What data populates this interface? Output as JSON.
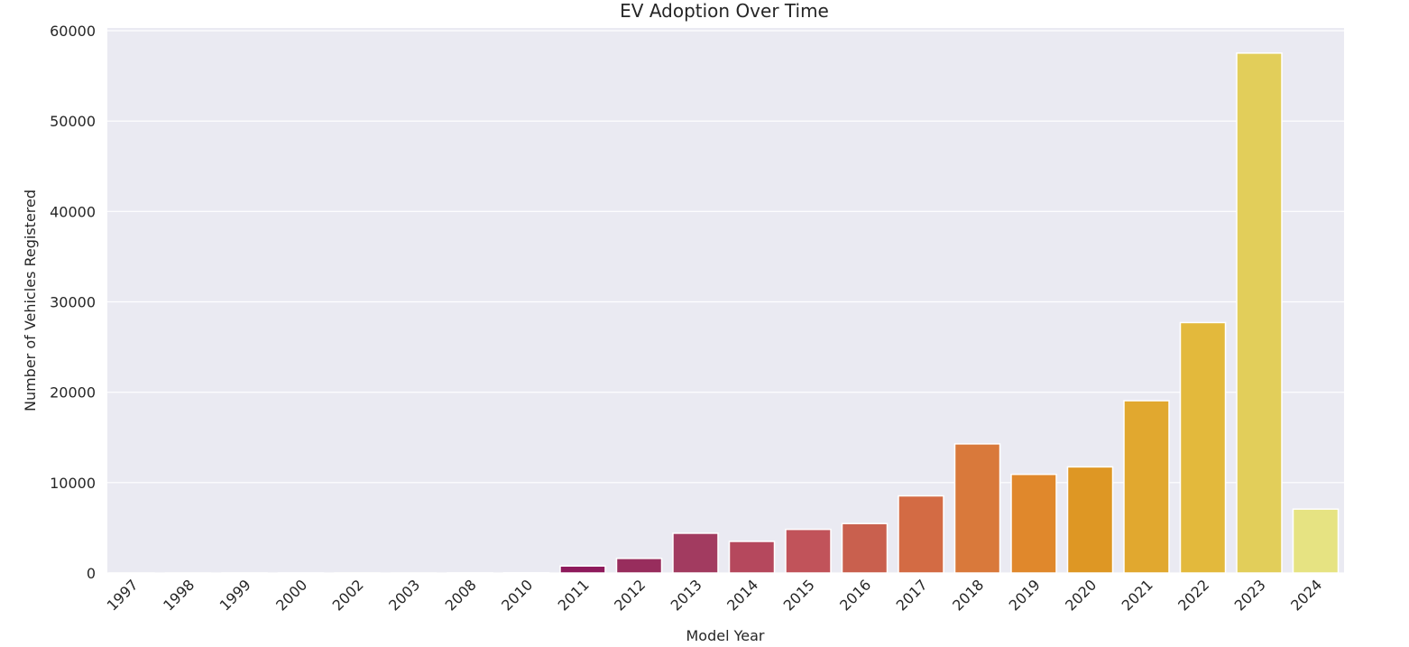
{
  "chart_data": {
    "type": "bar",
    "title": "EV Adoption Over Time",
    "xlabel": "Model Year",
    "ylabel": "Number of Vehicles Registered",
    "categories": [
      "1997",
      "1998",
      "1999",
      "2000",
      "2002",
      "2003",
      "2008",
      "2010",
      "2011",
      "2012",
      "2013",
      "2014",
      "2015",
      "2016",
      "2017",
      "2018",
      "2019",
      "2020",
      "2021",
      "2022",
      "2023",
      "2024"
    ],
    "values": [
      1,
      1,
      5,
      7,
      2,
      1,
      19,
      23,
      776,
      1614,
      4399,
      3496,
      4826,
      5469,
      8534,
      14286,
      10913,
      11740,
      19063,
      27708,
      57519,
      7072
    ],
    "ylim": [
      0,
      60000
    ],
    "yticks": [
      0,
      10000,
      20000,
      30000,
      40000,
      50000,
      60000
    ],
    "grid": true,
    "background": "#eaeaf2",
    "colors": [
      "#000004",
      "#07051b",
      "#160b39",
      "#2a0a5e",
      "#420a68",
      "#560f6d",
      "#6a176e",
      "#7f1e6c",
      "#8e1a5c",
      "#982d5d",
      "#a23b60",
      "#b5485d",
      "#c1535a",
      "#c9604e",
      "#d36b44",
      "#d9793b",
      "#e0882c",
      "#de9724",
      "#e1a82f",
      "#e3b93c",
      "#e2ce5a",
      "#e6e382"
    ],
    "legend": "none"
  }
}
